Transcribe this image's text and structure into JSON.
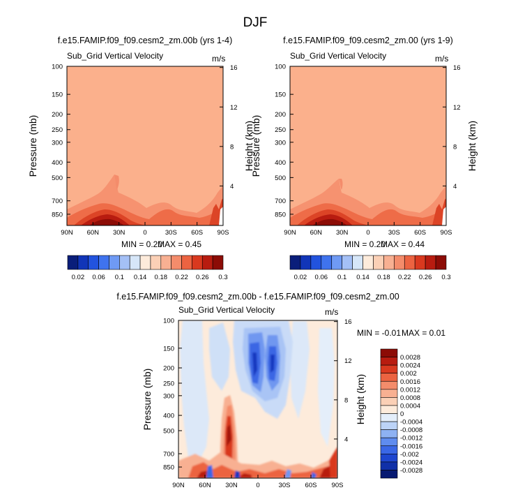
{
  "figure_title": "DJF",
  "chart_data": [
    {
      "type": "heatmap",
      "title": "f.e15.FAMIP.f09_f09.cesm2_zm.00b (yrs 1-4)",
      "variable": "Sub_Grid Vertical Velocity",
      "units": "m/s",
      "ylabel": "Pressure (mb)",
      "ylabel_right": "Height (km)",
      "x_ticks": [
        "90N",
        "60N",
        "30N",
        "0",
        "30S",
        "60S",
        "90S"
      ],
      "y_ticks": [
        "100",
        "150",
        "200",
        "250",
        "300",
        "400",
        "500",
        "700",
        "850"
      ],
      "y_ticks_right": [
        "16",
        "12",
        "8",
        "4"
      ],
      "ylim": [
        100,
        1000
      ],
      "xlim": [
        90,
        -90
      ],
      "min_label": "MIN =  0.20",
      "max_label": "MAX =  0.45",
      "min": 0.2,
      "max": 0.45
    },
    {
      "type": "heatmap",
      "title": "f.e15.FAMIP.f09_f09.cesm2_zm.00 (yrs 1-9)",
      "variable": "Sub_Grid Vertical Velocity",
      "units": "m/s",
      "ylabel": "Pressure (mb)",
      "ylabel_right": "Height (km)",
      "x_ticks": [
        "90N",
        "60N",
        "30N",
        "0",
        "30S",
        "60S",
        "90S"
      ],
      "y_ticks": [
        "100",
        "150",
        "200",
        "250",
        "300",
        "400",
        "500",
        "700",
        "850"
      ],
      "y_ticks_right": [
        "16",
        "12",
        "8",
        "4"
      ],
      "ylim": [
        100,
        1000
      ],
      "xlim": [
        90,
        -90
      ],
      "min_label": "MIN =  0.20",
      "max_label": "MAX =  0.44",
      "min": 0.2,
      "max": 0.44
    },
    {
      "type": "heatmap",
      "title": "f.e15.FAMIP.f09_f09.cesm2_zm.00b - f.e15.FAMIP.f09_f09.cesm2_zm.00",
      "variable": "Sub_Grid Vertical Velocity",
      "units": "m/s",
      "ylabel": "Pressure (mb)",
      "ylabel_right": "Height (km)",
      "x_ticks": [
        "90N",
        "60N",
        "30N",
        "0",
        "30S",
        "60S",
        "90S"
      ],
      "y_ticks": [
        "100",
        "150",
        "200",
        "250",
        "300",
        "400",
        "500",
        "700",
        "850"
      ],
      "y_ticks_right": [
        "16",
        "12",
        "8",
        "4"
      ],
      "ylim": [
        100,
        1000
      ],
      "xlim": [
        90,
        -90
      ],
      "min_label": "MIN =  -0.01",
      "max_label": "MAX =  0.01",
      "min": -0.01,
      "max": 0.01
    }
  ],
  "colorbar_top": {
    "labels": [
      "0.02",
      "0.06",
      "0.1",
      "0.14",
      "0.18",
      "0.22",
      "0.26",
      "0.3"
    ],
    "colors": [
      "#0a1e7a",
      "#1135b8",
      "#2253de",
      "#3f73ee",
      "#6f9af4",
      "#a4c0f6",
      "#d6e6f8",
      "#fdebdb",
      "#fbd0b6",
      "#f8b092",
      "#f48c6b",
      "#ec6341",
      "#d9391f",
      "#b81c10",
      "#8c0c06"
    ]
  },
  "colorbar_diff": {
    "labels": [
      "0.0028",
      "0.0024",
      "0.002",
      "0.0016",
      "0.0012",
      "0.0008",
      "0.0004",
      "0",
      "-0.0004",
      "-0.0008",
      "-0.0012",
      "-0.0016",
      "-0.002",
      "-0.0024",
      "-0.0028"
    ],
    "colors": [
      "#8c0c06",
      "#b81c10",
      "#d9391f",
      "#ec6341",
      "#f48c6b",
      "#f8b092",
      "#fbd0b6",
      "#fdebdb",
      "#e4eefa",
      "#bcd3f7",
      "#8eb2f3",
      "#5f8cef",
      "#3a67e6",
      "#1e46cf",
      "#1030a8",
      "#081a72"
    ]
  }
}
